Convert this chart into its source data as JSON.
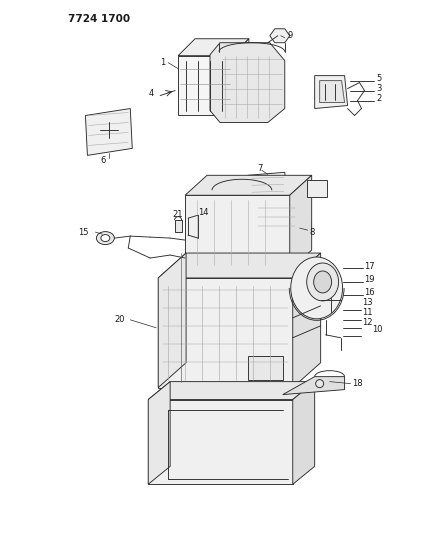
{
  "title": "7724 1700",
  "background_color": "#ffffff",
  "text_color": "#1a1a1a",
  "figsize": [
    4.28,
    5.33
  ],
  "dpi": 100,
  "line_color": "#2a2a2a",
  "line_width": 0.65
}
